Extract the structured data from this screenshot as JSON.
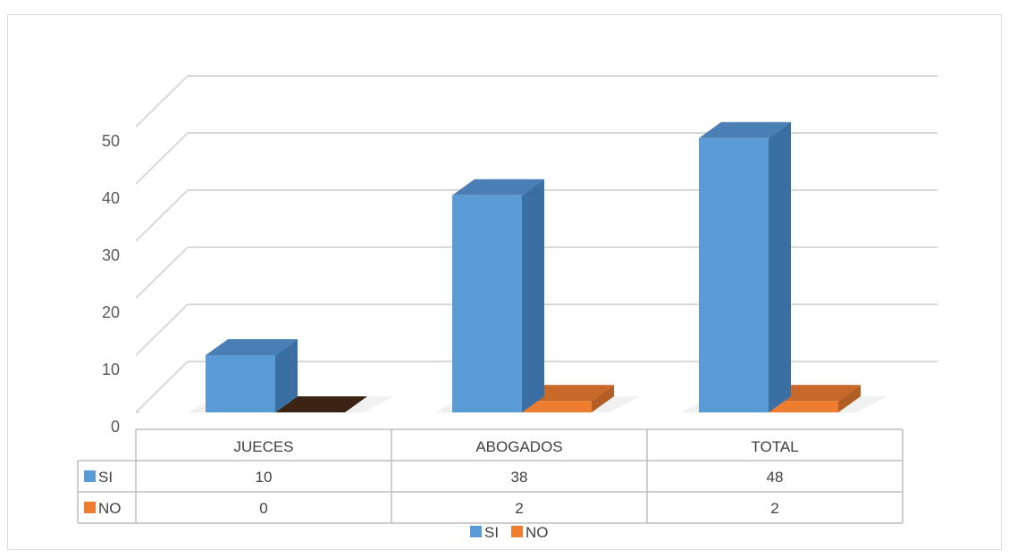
{
  "chart_data": {
    "type": "bar",
    "style": "3d-clustered-column-with-data-table",
    "categories": [
      "JUECES",
      "ABOGADOS",
      "TOTAL"
    ],
    "series": [
      {
        "name": "SI",
        "values": [
          10,
          38,
          48
        ],
        "color": "#5b9bd5"
      },
      {
        "name": "NO",
        "values": [
          0,
          2,
          2
        ],
        "color": "#ed7d31"
      }
    ],
    "ylim": [
      0,
      50
    ],
    "yticks": [
      0,
      10,
      20,
      30,
      40,
      50
    ],
    "grid": true,
    "legend_position": "bottom",
    "data_table": true
  },
  "colors": {
    "grid": "#d9d9d9",
    "table_border": "#bfbfbf",
    "si_front": "#5b9bd5",
    "si_side": "#3a6fa3",
    "si_top": "#4a7fb5",
    "no_front": "#ed7d31",
    "no_side": "#b35e24",
    "no_top": "#c8692a",
    "zero_bar": "#3b2414"
  }
}
